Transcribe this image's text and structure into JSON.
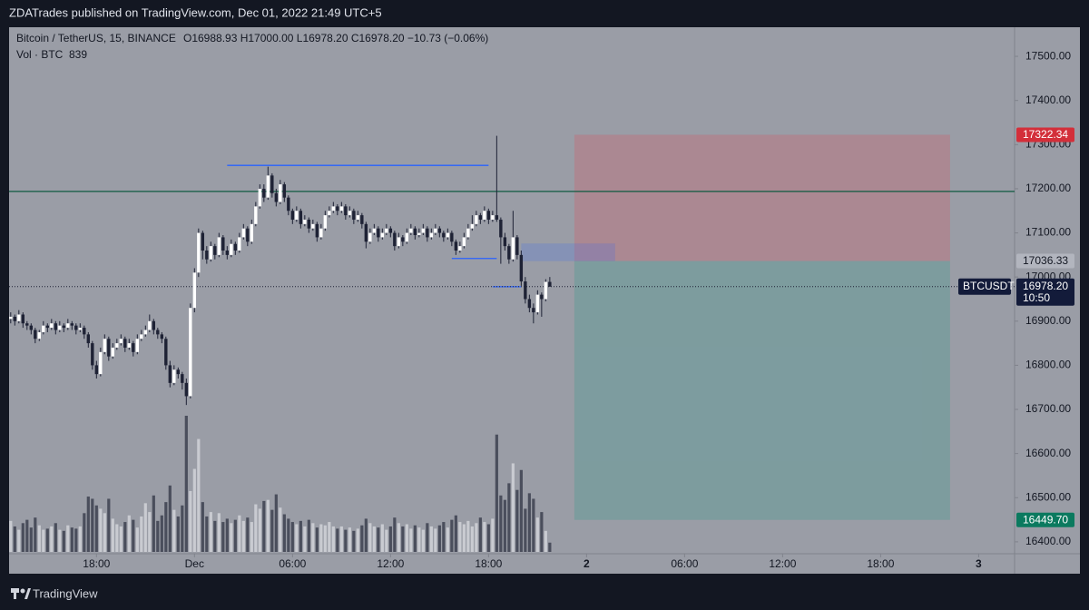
{
  "header": {
    "title": "ZDATrades published on TradingView.com, Dec 01, 2022 21:49 UTC+5"
  },
  "footer": {
    "brand": "TradingView"
  },
  "chart_data": {
    "type": "candlestick",
    "symbol": "Bitcoin / TetherUS, 15, BINANCE",
    "ohlc_text": "O16988.93 H17000.00 L16978.20 C16978.20 −10.73 (−0.06%)",
    "volume_label": "Vol · BTC",
    "up_color": "#ffffff",
    "down_color": "#1e2235",
    "volume_up_color": "#c9cbd1",
    "volume_down_color": "#4a4e5c",
    "xlim": [
      -0.4,
      245.8
    ],
    "ylim": [
      16373,
      17566
    ],
    "xticks": [
      {
        "value": 21,
        "label": "18:00"
      },
      {
        "value": 45,
        "label": "Dec"
      },
      {
        "value": 69,
        "label": "06:00"
      },
      {
        "value": 93,
        "label": "12:00"
      },
      {
        "value": 117,
        "label": "18:00"
      },
      {
        "value": 141,
        "label": "2"
      },
      {
        "value": 165,
        "label": "06:00"
      },
      {
        "value": 189,
        "label": "12:00"
      },
      {
        "value": 213,
        "label": "18:00"
      },
      {
        "value": 237,
        "label": "3"
      }
    ],
    "yticks": [
      {
        "value": 17500,
        "label": "17500.00"
      },
      {
        "value": 17400,
        "label": "17400.00"
      },
      {
        "value": 17300,
        "label": "17300.00"
      },
      {
        "value": 17200,
        "label": "17200.00"
      },
      {
        "value": 17100,
        "label": "17100.00"
      },
      {
        "value": 17000,
        "label": "17000.00"
      },
      {
        "value": 16900,
        "label": "16900.00"
      },
      {
        "value": 16800,
        "label": "16800.00"
      },
      {
        "value": 16700,
        "label": "16700.00"
      },
      {
        "value": 16600,
        "label": "16600.00"
      },
      {
        "value": 16500,
        "label": "16500.00"
      },
      {
        "value": 16400,
        "label": "16400.00"
      }
    ],
    "candles": [
      [
        16905,
        16920,
        16895,
        16910
      ],
      [
        16910,
        16915,
        16890,
        16900
      ],
      [
        16900,
        16925,
        16895,
        16915
      ],
      [
        16915,
        16920,
        16885,
        16895
      ],
      [
        16895,
        16900,
        16880,
        16890
      ],
      [
        16890,
        16895,
        16870,
        16880
      ],
      [
        16880,
        16885,
        16850,
        16860
      ],
      [
        16860,
        16880,
        16855,
        16875
      ],
      [
        16875,
        16900,
        16870,
        16890
      ],
      [
        16890,
        16895,
        16875,
        16885
      ],
      [
        16885,
        16905,
        16880,
        16895
      ],
      [
        16895,
        16900,
        16870,
        16880
      ],
      [
        16880,
        16900,
        16875,
        16890
      ],
      [
        16890,
        16895,
        16875,
        16885
      ],
      [
        16885,
        16905,
        16880,
        16895
      ],
      [
        16895,
        16900,
        16880,
        16890
      ],
      [
        16890,
        16895,
        16870,
        16880
      ],
      [
        16880,
        16895,
        16875,
        16885
      ],
      [
        16885,
        16890,
        16860,
        16870
      ],
      [
        16870,
        16875,
        16840,
        16850
      ],
      [
        16850,
        16855,
        16790,
        16800
      ],
      [
        16800,
        16810,
        16770,
        16780
      ],
      [
        16780,
        16840,
        16775,
        16830
      ],
      [
        16830,
        16870,
        16825,
        16860
      ],
      [
        16860,
        16865,
        16810,
        16820
      ],
      [
        16820,
        16850,
        16815,
        16840
      ],
      [
        16840,
        16860,
        16835,
        16850
      ],
      [
        16850,
        16870,
        16845,
        16860
      ],
      [
        16860,
        16865,
        16830,
        16840
      ],
      [
        16840,
        16860,
        16835,
        16850
      ],
      [
        16850,
        16855,
        16820,
        16830
      ],
      [
        16830,
        16870,
        16825,
        16860
      ],
      [
        16860,
        16880,
        16855,
        16870
      ],
      [
        16870,
        16890,
        16865,
        16880
      ],
      [
        16880,
        16915,
        16875,
        16900
      ],
      [
        16900,
        16905,
        16870,
        16880
      ],
      [
        16880,
        16885,
        16860,
        16870
      ],
      [
        16870,
        16875,
        16850,
        16860
      ],
      [
        16860,
        16865,
        16790,
        16800
      ],
      [
        16800,
        16810,
        16750,
        16760
      ],
      [
        16760,
        16800,
        16755,
        16790
      ],
      [
        16790,
        16795,
        16770,
        16780
      ],
      [
        16780,
        16785,
        16745,
        16760
      ],
      [
        16760,
        16770,
        16710,
        16730
      ],
      [
        16730,
        16940,
        16725,
        16930
      ],
      [
        16930,
        17020,
        16920,
        17010
      ],
      [
        17010,
        17110,
        17000,
        17100
      ],
      [
        17100,
        17105,
        17040,
        17060
      ],
      [
        17060,
        17070,
        17030,
        17040
      ],
      [
        17040,
        17080,
        17035,
        17070
      ],
      [
        17070,
        17075,
        17040,
        17050
      ],
      [
        17050,
        17100,
        17045,
        17090
      ],
      [
        17090,
        17095,
        17050,
        17060
      ],
      [
        17060,
        17070,
        17040,
        17050
      ],
      [
        17050,
        17085,
        17045,
        17075
      ],
      [
        17075,
        17080,
        17050,
        17060
      ],
      [
        17060,
        17100,
        17055,
        17090
      ],
      [
        17090,
        17120,
        17085,
        17110
      ],
      [
        17110,
        17115,
        17070,
        17080
      ],
      [
        17080,
        17130,
        17075,
        17120
      ],
      [
        17120,
        17170,
        17115,
        17160
      ],
      [
        17160,
        17210,
        17155,
        17200
      ],
      [
        17200,
        17210,
        17170,
        17180
      ],
      [
        17180,
        17250,
        17175,
        17230
      ],
      [
        17230,
        17235,
        17180,
        17190
      ],
      [
        17190,
        17200,
        17160,
        17170
      ],
      [
        17170,
        17220,
        17165,
        17210
      ],
      [
        17210,
        17215,
        17170,
        17180
      ],
      [
        17180,
        17185,
        17140,
        17150
      ],
      [
        17150,
        17155,
        17120,
        17130
      ],
      [
        17130,
        17160,
        17125,
        17150
      ],
      [
        17150,
        17155,
        17110,
        17120
      ],
      [
        17120,
        17140,
        17115,
        17130
      ],
      [
        17130,
        17135,
        17100,
        17110
      ],
      [
        17110,
        17130,
        17105,
        17120
      ],
      [
        17120,
        17125,
        17080,
        17090
      ],
      [
        17090,
        17120,
        17085,
        17110
      ],
      [
        17110,
        17150,
        17105,
        17140
      ],
      [
        17140,
        17160,
        17135,
        17150
      ],
      [
        17150,
        17170,
        17145,
        17160
      ],
      [
        17160,
        17165,
        17140,
        17150
      ],
      [
        17150,
        17170,
        17145,
        17160
      ],
      [
        17160,
        17165,
        17130,
        17140
      ],
      [
        17140,
        17160,
        17135,
        17150
      ],
      [
        17150,
        17155,
        17120,
        17130
      ],
      [
        17130,
        17150,
        17125,
        17140
      ],
      [
        17140,
        17145,
        17110,
        17120
      ],
      [
        17120,
        17125,
        17065,
        17080
      ],
      [
        17080,
        17110,
        17075,
        17100
      ],
      [
        17100,
        17120,
        17095,
        17110
      ],
      [
        17110,
        17115,
        17080,
        17090
      ],
      [
        17090,
        17110,
        17085,
        17100
      ],
      [
        17100,
        17120,
        17095,
        17110
      ],
      [
        17110,
        17115,
        17090,
        17100
      ],
      [
        17100,
        17105,
        17060,
        17070
      ],
      [
        17070,
        17100,
        17065,
        17090
      ],
      [
        17090,
        17095,
        17070,
        17080
      ],
      [
        17080,
        17110,
        17075,
        17100
      ],
      [
        17100,
        17120,
        17095,
        17110
      ],
      [
        17110,
        17115,
        17085,
        17095
      ],
      [
        17095,
        17110,
        17090,
        17100
      ],
      [
        17100,
        17120,
        17095,
        17110
      ],
      [
        17110,
        17115,
        17080,
        17090
      ],
      [
        17090,
        17110,
        17085,
        17100
      ],
      [
        17100,
        17120,
        17095,
        17110
      ],
      [
        17110,
        17115,
        17090,
        17100
      ],
      [
        17100,
        17105,
        17080,
        17090
      ],
      [
        17090,
        17110,
        17085,
        17100
      ],
      [
        17100,
        17105,
        17070,
        17080
      ],
      [
        17080,
        17085,
        17050,
        17060
      ],
      [
        17060,
        17080,
        17055,
        17070
      ],
      [
        17070,
        17100,
        17065,
        17090
      ],
      [
        17090,
        17120,
        17085,
        17110
      ],
      [
        17110,
        17140,
        17105,
        17120
      ],
      [
        17120,
        17150,
        17115,
        17140
      ],
      [
        17140,
        17145,
        17120,
        17130
      ],
      [
        17130,
        17160,
        17125,
        17150
      ],
      [
        17150,
        17155,
        17120,
        17130
      ],
      [
        17130,
        17150,
        17125,
        17140
      ],
      [
        17140,
        17320,
        17125,
        17130
      ],
      [
        17130,
        17135,
        17030,
        17090
      ],
      [
        17090,
        17100,
        17060,
        17070
      ],
      [
        17070,
        17075,
        17030,
        17040
      ],
      [
        17040,
        17150,
        17035,
        17090
      ],
      [
        17090,
        17095,
        17040,
        17050
      ],
      [
        17050,
        17060,
        16980,
        16990
      ],
      [
        16990,
        17000,
        16940,
        16950
      ],
      [
        16950,
        16960,
        16920,
        16930
      ],
      [
        16930,
        16940,
        16895,
        16920
      ],
      [
        16920,
        16970,
        16915,
        16960
      ],
      [
        16960,
        16965,
        16910,
        16950
      ],
      [
        16950,
        16995,
        16945,
        16988.93
      ],
      [
        16988.93,
        17000,
        16978.2,
        16978.2
      ]
    ],
    "volume": [
      2800,
      2300,
      2000,
      2600,
      2900,
      2200,
      3100,
      2400,
      2000,
      2100,
      2300,
      2600,
      2000,
      1900,
      2400,
      2200,
      2100,
      2300,
      3500,
      5000,
      4800,
      4200,
      3900,
      3500,
      4800,
      3000,
      2500,
      2300,
      2700,
      3300,
      2900,
      2200,
      3200,
      4400,
      3600,
      5100,
      2800,
      3300,
      4500,
      6000,
      3800,
      3200,
      4200,
      12300,
      5500,
      7500,
      10200,
      4500,
      3200,
      3600,
      2800,
      3500,
      2700,
      3000,
      2600,
      2900,
      3300,
      2800,
      3100,
      2700,
      4300,
      3900,
      4600,
      4700,
      3800,
      5200,
      4000,
      3400,
      3000,
      2700,
      2500,
      2800,
      2300,
      2900,
      2600,
      2200,
      2500,
      2400,
      2700,
      2300,
      2100,
      2300,
      2000,
      2200,
      1900,
      2100,
      2400,
      3000,
      2600,
      2300,
      2200,
      2500,
      2000,
      2300,
      3100,
      2600,
      2300,
      2500,
      2100,
      2400,
      2200,
      2000,
      2600,
      2300,
      2100,
      2400,
      2700,
      2200,
      2900,
      3300,
      2700,
      2500,
      2800,
      2300,
      2600,
      3100,
      2700,
      2500,
      3000,
      10600,
      5100,
      4700,
      6200,
      8000,
      5600,
      7400,
      3900,
      5300,
      4800,
      3100,
      3600,
      1900,
      839
    ],
    "levels": [
      {
        "value": 17194,
        "color": "#0e5a40"
      },
      {
        "value": 17253,
        "from": 53,
        "to": 117,
        "color": "#2962ff"
      },
      {
        "value": 17042,
        "from": 108,
        "to": 119,
        "color": "#2962ff"
      },
      {
        "value": 16978,
        "from": 118,
        "to": 125,
        "color": "#2962ff"
      }
    ],
    "zone": {
      "from": 125,
      "to": 148,
      "top": 17076,
      "bottom": 17036,
      "color": "#2962ff"
    },
    "position": {
      "from": 138,
      "to": 230,
      "stop": {
        "value": 17322.34,
        "label": "17322.34"
      },
      "entry": {
        "value": 17036.33,
        "label": "17036.33"
      },
      "target": {
        "value": 16449.7,
        "label": "16449.70"
      },
      "stop_color": "#f23645",
      "target_color": "#089981"
    },
    "last_price": {
      "value": 16978.2,
      "label": "16978.20"
    },
    "countdown": "10:50",
    "symbol_label": "BTCUSDT"
  }
}
